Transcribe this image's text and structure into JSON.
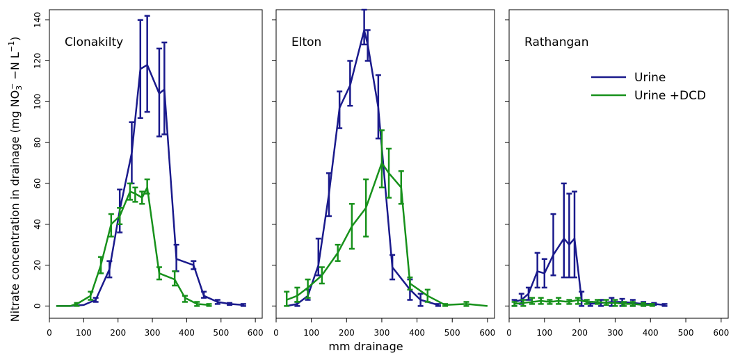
{
  "chart_data": {
    "type": "line",
    "xlabel": "mm drainage",
    "ylabel": "Nitrate concentration in drainage (mg NO",
    "ylabel_sub": "3",
    "ylabel_sup": "−",
    "ylabel_mid": " −N L",
    "ylabel_sup2": "−1",
    "ylabel_end": ")",
    "xlim": [
      0,
      620
    ],
    "ylim": [
      -6,
      145
    ],
    "xticks": [
      0,
      100,
      200,
      300,
      400,
      500,
      600
    ],
    "yticks": [
      0,
      20,
      40,
      60,
      80,
      100,
      120,
      140
    ],
    "legend": {
      "placement": "top-right of third panel",
      "entries": [
        {
          "label": "Urine",
          "color": "#1a1a8c"
        },
        {
          "label": "Urine +DCD",
          "color": "#17911b"
        }
      ]
    },
    "panels": [
      {
        "title": "Clonakilty",
        "series": [
          {
            "name": "Urine",
            "color": "#1a1a8c",
            "points": [
              [
                20,
                0,
                0,
                0
              ],
              [
                60,
                0,
                0,
                0
              ],
              [
                100,
                0.5,
                0,
                0
              ],
              [
                135,
                3,
                2,
                4
              ],
              [
                175,
                18,
                14,
                22
              ],
              [
                205,
                47,
                36,
                57
              ],
              [
                240,
                75,
                60,
                90
              ],
              [
                265,
                116,
                92,
                140
              ],
              [
                285,
                118,
                95,
                142
              ],
              [
                320,
                104,
                83,
                126
              ],
              [
                335,
                106,
                84,
                129
              ],
              [
                370,
                23,
                17,
                30
              ],
              [
                420,
                20,
                18,
                22
              ],
              [
                450,
                5,
                4,
                7
              ],
              [
                490,
                2,
                1,
                3
              ],
              [
                525,
                1,
                0.5,
                1.5
              ],
              [
                565,
                0.5,
                0,
                1
              ]
            ]
          },
          {
            "name": "Urine +DCD",
            "color": "#17911b",
            "points": [
              [
                20,
                0,
                0,
                0
              ],
              [
                60,
                0,
                0,
                0
              ],
              [
                80,
                1,
                0,
                1.5
              ],
              [
                120,
                5,
                3,
                7
              ],
              [
                150,
                20,
                16,
                24
              ],
              [
                180,
                40,
                34,
                45
              ],
              [
                205,
                44,
                40,
                48
              ],
              [
                235,
                56,
                52,
                60
              ],
              [
                250,
                55,
                51,
                58
              ],
              [
                270,
                53,
                50,
                56
              ],
              [
                285,
                58,
                55,
                62
              ],
              [
                320,
                16,
                13,
                19
              ],
              [
                365,
                13,
                10,
                17
              ],
              [
                395,
                4,
                2,
                5
              ],
              [
                430,
                1,
                0,
                2
              ],
              [
                465,
                0.5,
                0,
                1
              ]
            ]
          }
        ]
      },
      {
        "title": "Elton",
        "series": [
          {
            "name": "Urine",
            "color": "#1a1a8c",
            "points": [
              [
                30,
                0,
                0,
                0
              ],
              [
                60,
                1,
                0,
                2
              ],
              [
                90,
                5,
                3,
                8
              ],
              [
                120,
                20,
                15,
                33
              ],
              [
                150,
                55,
                44,
                65
              ],
              [
                180,
                97,
                87,
                105
              ],
              [
                210,
                108,
                98,
                120
              ],
              [
                250,
                135,
                128,
                145
              ],
              [
                260,
                128,
                120,
                135
              ],
              [
                290,
                97,
                82,
                113
              ],
              [
                330,
                19,
                13,
                25
              ],
              [
                380,
                8,
                3,
                13
              ],
              [
                410,
                3,
                0,
                6
              ],
              [
                460,
                0.5,
                0,
                1
              ]
            ]
          },
          {
            "name": "Urine +DCD",
            "color": "#17911b",
            "points": [
              [
                30,
                3,
                0,
                7
              ],
              [
                60,
                5,
                2,
                9
              ],
              [
                90,
                9,
                4,
                13
              ],
              [
                130,
                15,
                11,
                19
              ],
              [
                175,
                26,
                22,
                30
              ],
              [
                215,
                39,
                28,
                50
              ],
              [
                255,
                48,
                34,
                62
              ],
              [
                300,
                70,
                58,
                86
              ],
              [
                320,
                65,
                53,
                77
              ],
              [
                355,
                58,
                50,
                66
              ],
              [
                380,
                11,
                8,
                14
              ],
              [
                430,
                5,
                2,
                8
              ],
              [
                480,
                0.5,
                0,
                1
              ],
              [
                540,
                1,
                0,
                2
              ],
              [
                600,
                0,
                0,
                0
              ]
            ]
          }
        ]
      },
      {
        "title": "Rathangan",
        "series": [
          {
            "name": "Urine",
            "color": "#1a1a8c",
            "points": [
              [
                15,
                2,
                0,
                3
              ],
              [
                35,
                3,
                1,
                6
              ],
              [
                55,
                6,
                3,
                9
              ],
              [
                80,
                17,
                9,
                26
              ],
              [
                100,
                16,
                9,
                23
              ],
              [
                125,
                25,
                15,
                45
              ],
              [
                155,
                33,
                14,
                60
              ],
              [
                170,
                30,
                14,
                55
              ],
              [
                185,
                33,
                14,
                56
              ],
              [
                205,
                3,
                0,
                7
              ],
              [
                230,
                1,
                0,
                2
              ],
              [
                260,
                1.5,
                0,
                3
              ],
              [
                290,
                2,
                0,
                4
              ],
              [
                320,
                2,
                0,
                3.5
              ],
              [
                350,
                1.5,
                0,
                3
              ],
              [
                380,
                1,
                0,
                2
              ],
              [
                410,
                1,
                0.5,
                1.5
              ],
              [
                440,
                0.5,
                0,
                1
              ]
            ]
          },
          {
            "name": "Urine +DCD",
            "color": "#17911b",
            "points": [
              [
                15,
                1,
                0,
                2
              ],
              [
                40,
                1.5,
                0,
                3
              ],
              [
                65,
                2,
                1,
                4
              ],
              [
                90,
                2.5,
                1,
                4
              ],
              [
                115,
                2,
                1,
                3
              ],
              [
                140,
                2.5,
                1,
                4
              ],
              [
                170,
                2,
                1,
                3
              ],
              [
                195,
                3,
                1,
                4
              ],
              [
                220,
                2,
                1,
                3
              ],
              [
                250,
                2,
                1,
                3
              ],
              [
                275,
                1.5,
                0.5,
                3
              ],
              [
                300,
                1.5,
                0,
                3
              ],
              [
                325,
                1,
                0,
                2
              ],
              [
                350,
                1,
                0,
                2
              ],
              [
                380,
                0.5,
                0,
                1.5
              ],
              [
                405,
                0.5,
                0,
                1
              ]
            ]
          }
        ]
      }
    ]
  }
}
